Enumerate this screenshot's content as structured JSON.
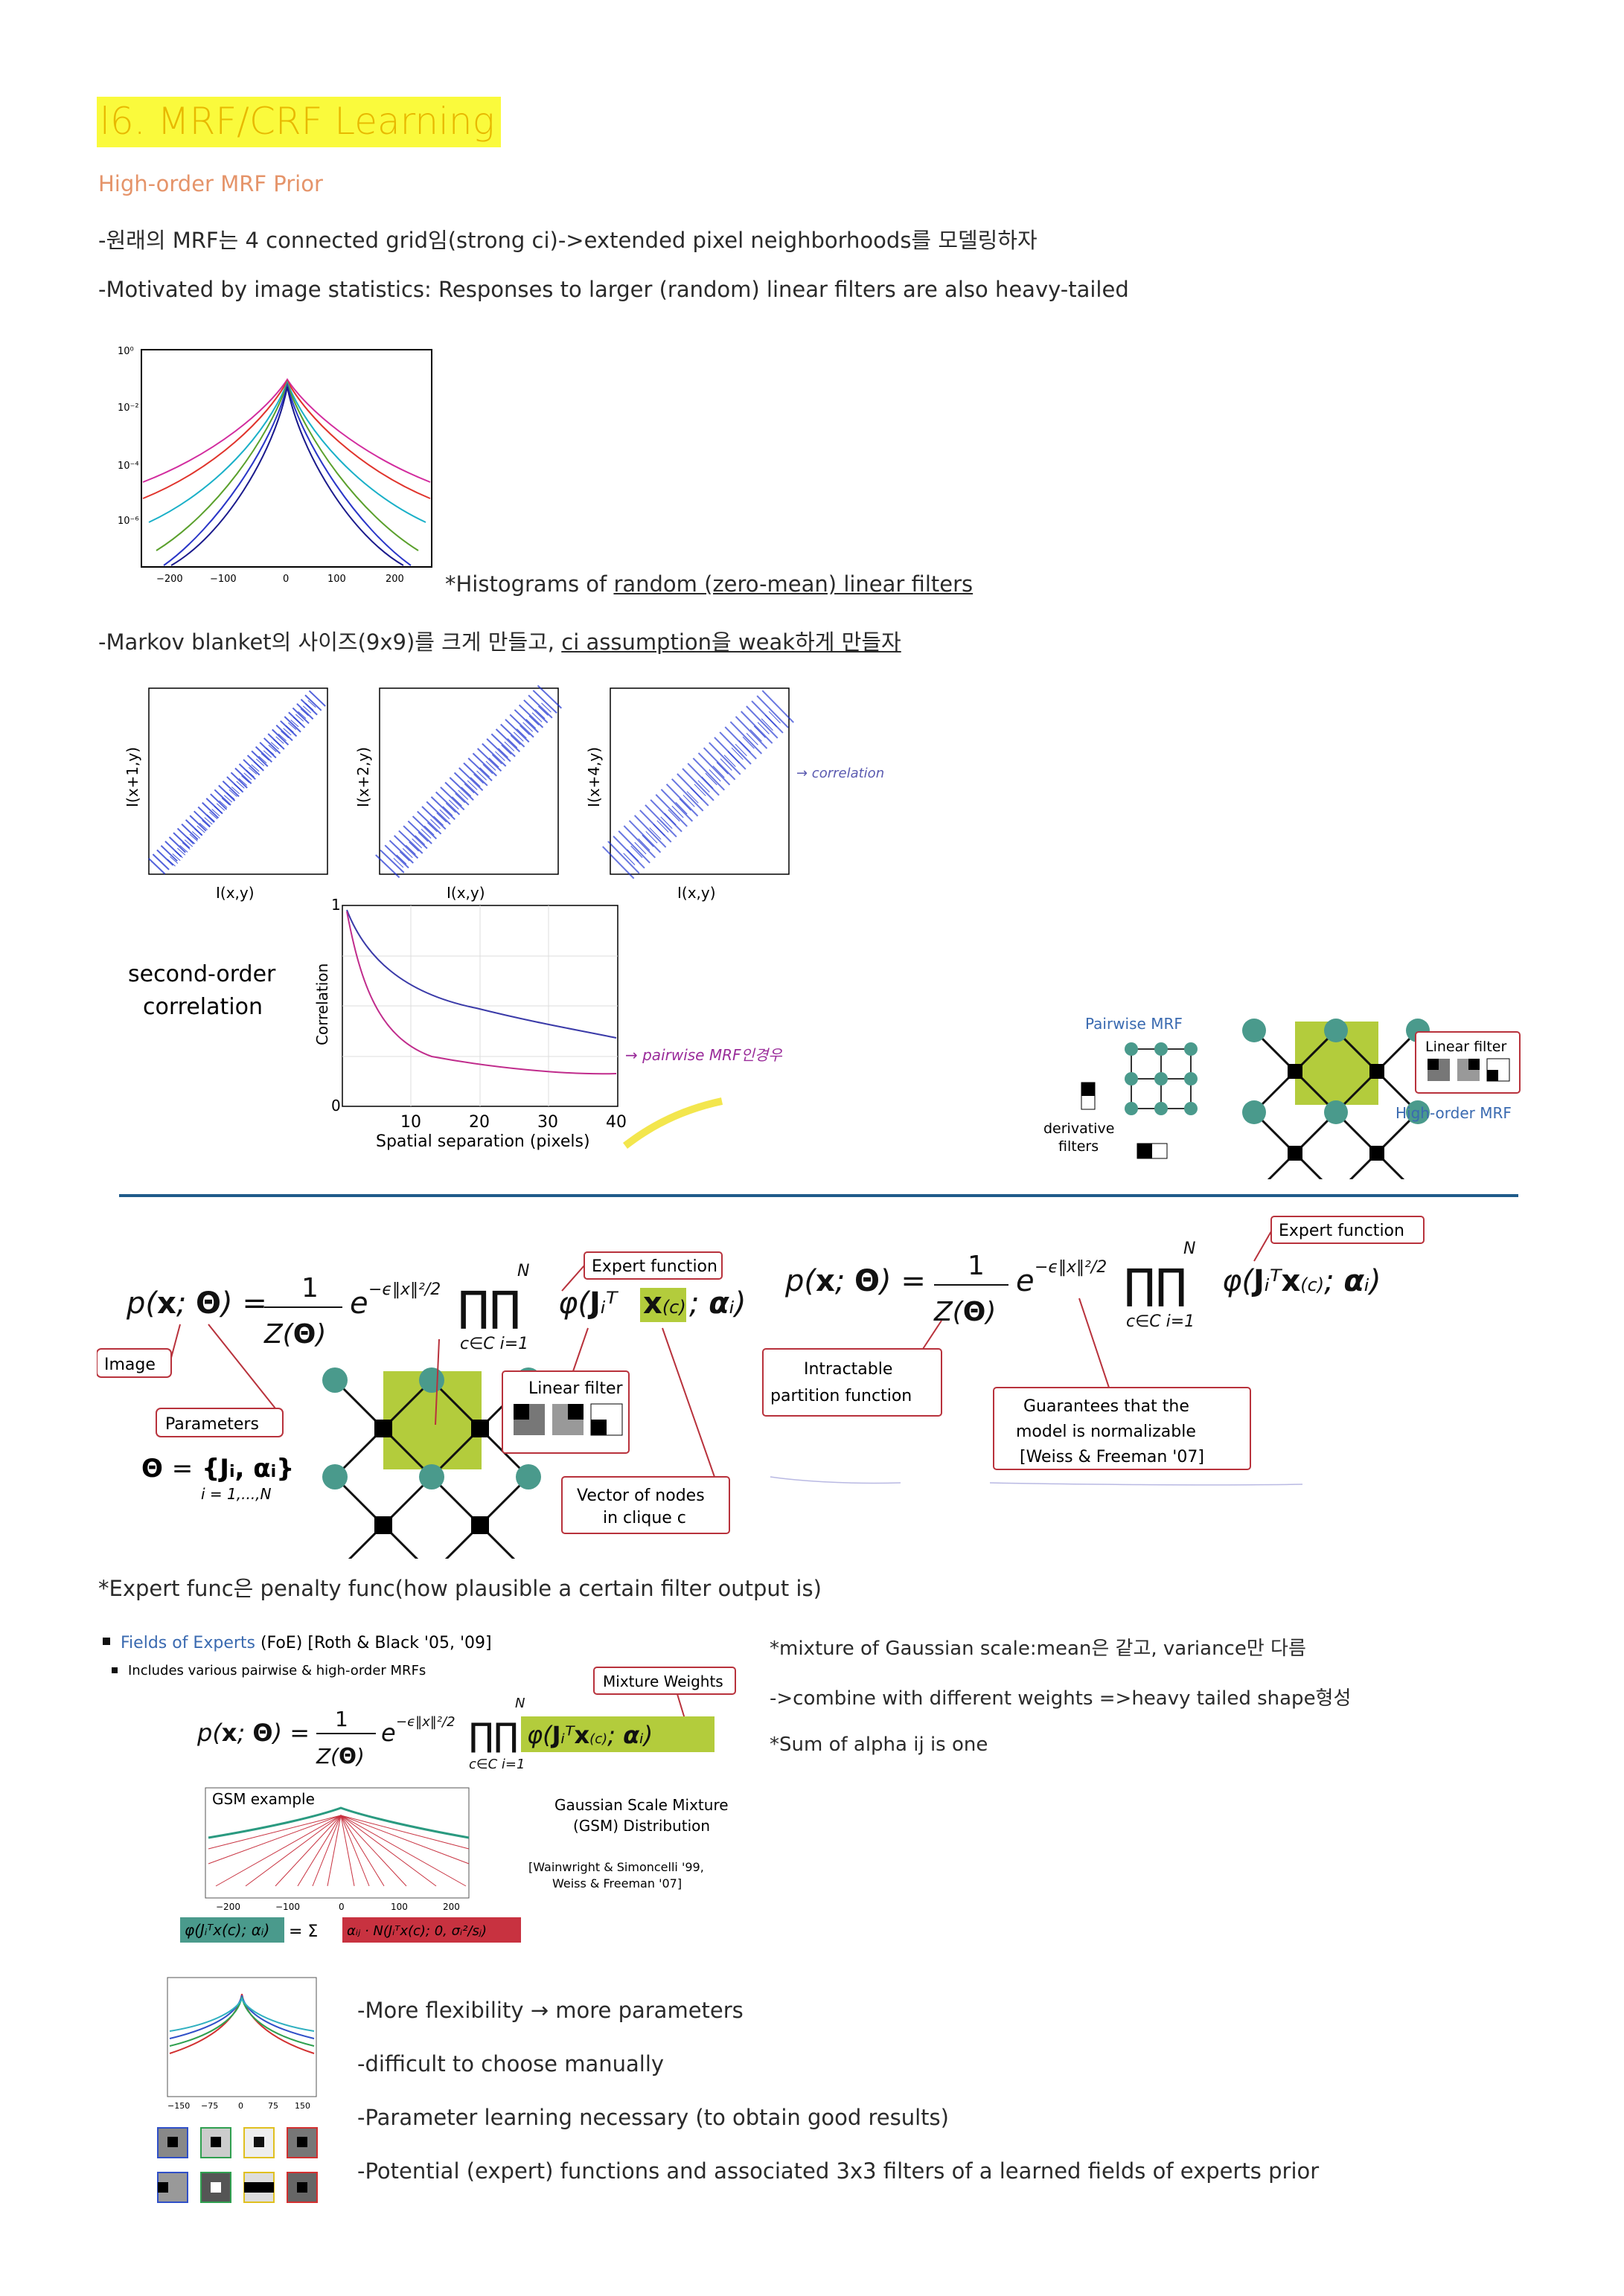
{
  "title": "l6. MRF/CRF Learning",
  "section": "High-order MRF Prior",
  "lines": {
    "l1": "-원래의 MRF는 4 connected grid임(strong ci)->extended pixel neighborhoods를 모델링하자",
    "l2": "-Motivated by image statistics: Responses to larger (random) linear filters are also heavy-tailed",
    "hist_caption_prefix": "*Histograms of ",
    "hist_caption_link": "random (zero-mean) linear filters",
    "l3_prefix": "-Markov blanket의 사이즈(9x9)를 크게 만들고, ",
    "l3_link": "ci assumption을 weak하게 만들자",
    "expert_note": "*Expert func은 penalty func(how plausible a certain filter output is)",
    "gsm_note1": "*mixture of Gaussian scale:mean은 같고, variance만 다름",
    "gsm_note2": "->combine with different weights =>heavy tailed shape형성",
    "gsm_note3": "*Sum of alpha ij is one",
    "b1": "-More flexibility → more parameters",
    "b2": "-difficult to choose manually",
    "b3": "-Parameter learning necessary (to obtain good results)",
    "b4": "-Potential (expert) functions and associated 3x3 filters of a learned fields of experts prior"
  },
  "fig_hist": {
    "yticks": [
      "10⁰",
      "10⁻²",
      "10⁻⁴",
      "10⁻⁶"
    ],
    "xticks": [
      "−200",
      "−100",
      "0",
      "100",
      "200"
    ]
  },
  "fig_scatter": {
    "ylabels": [
      "I(x+1,y)",
      "I(x+2,y)",
      "I(x+4,y)"
    ],
    "xlabel": "I(x,y)",
    "note": "→ correlation"
  },
  "fig_corr": {
    "left_label_1": "second-order",
    "left_label_2": "correlation",
    "ylabel": "Correlation",
    "xlabel": "Spatial separation (pixels)",
    "yticks": [
      "1",
      "0"
    ],
    "xticks": [
      "10",
      "20",
      "30",
      "40"
    ],
    "handnote": "→ pairwise MRF인경우",
    "pairwise_title": "Pairwise MRF",
    "derivative": "derivative",
    "filters": "filters",
    "linear_filter": "Linear filter",
    "high_order": "High-order MRF"
  },
  "fig_formula": {
    "image": "Image",
    "parameters": "Parameters",
    "expert_function": "Expert function",
    "linear_filter": "Linear filter",
    "vector_nodes_1": "Vector of nodes",
    "vector_nodes_2": "in clique c",
    "intractable_1": "Intractable",
    "intractable_2": "partition function",
    "guarantee_1": "Guarantees that the",
    "guarantee_2": "model is normalizable",
    "guarantee_3": "[Weiss & Freeman '07]",
    "expert_function_2": "Expert function"
  },
  "fig_foe": {
    "heading_link": "Fields of Experts",
    "heading_rest": " (FoE) [Roth & Black '05, '09]",
    "sub": "Includes various pairwise & high-order MRFs",
    "mixture": "Mixture Weights",
    "gsm_example": "GSM example",
    "gsm_dist_1": "Gaussian Scale Mixture",
    "gsm_dist_2": "(GSM) Distribution",
    "cite_1": "[Wainwright & Simoncelli '99,",
    "cite_2": "Weiss & Freeman '07]",
    "xticks": [
      "−200",
      "−100",
      "0",
      "100",
      "200"
    ]
  },
  "fig_learned": {
    "xticks": [
      "−150",
      "−75",
      "0",
      "75",
      "150"
    ]
  },
  "colors": {
    "teal": "#4a9a8c",
    "lime": "#b3cc3c",
    "red_box": "#b8323c",
    "title_yellow": "#fafa3c",
    "section_orange": "#e5946a",
    "divider": "#1f5b8a"
  }
}
